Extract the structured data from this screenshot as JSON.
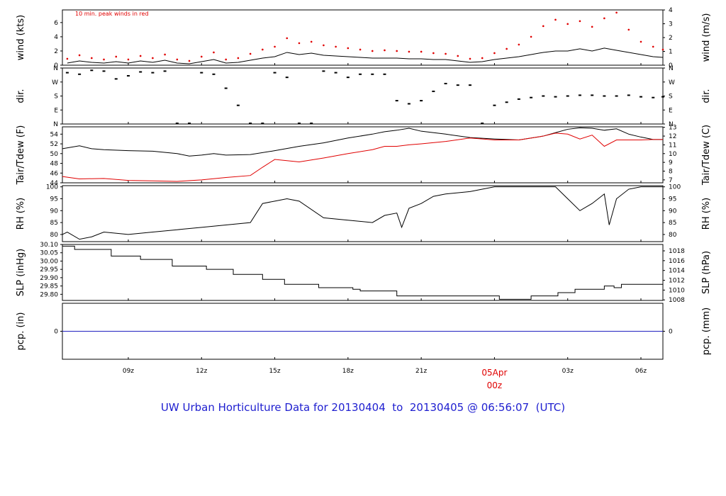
{
  "title": "UW Urban Horticulture Data for 20130404  to  20130405 @ 06:56:07  (UTC)",
  "colors": {
    "primary": "#000000",
    "peak": "#e00000",
    "dewpoint": "#e00000",
    "precip": "#2020c0",
    "title": "#2020d0",
    "day_label": "#e00000"
  },
  "time_axis": {
    "range_hours": [
      6.3,
      30.9
    ],
    "ticks": [
      {
        "h": 9,
        "label": "09z"
      },
      {
        "h": 12,
        "label": "12z"
      },
      {
        "h": 15,
        "label": "15z"
      },
      {
        "h": 18,
        "label": "18z"
      },
      {
        "h": 21,
        "label": "21z"
      },
      {
        "h": 27,
        "label": "03z"
      },
      {
        "h": 30,
        "label": "06z"
      }
    ],
    "day_marker": {
      "h": 24,
      "line1": "05Apr",
      "line2": "00z"
    }
  },
  "chart_data": [
    {
      "id": "wind",
      "type": "line",
      "ylabel_left": "wind (kts)",
      "ylabel_right": "wind (m/s)",
      "annotation": "10 min. peak winds in red",
      "ylim": [
        0,
        7.78
      ],
      "left_ticks": [
        "0",
        "2",
        "4",
        "6"
      ],
      "left_tick_values": [
        0,
        2,
        4,
        6
      ],
      "right_ticks": [
        "0",
        "1",
        "2",
        "3",
        "4"
      ],
      "right_tick_values_ms": [
        0,
        1,
        2,
        3,
        4
      ],
      "series": [
        {
          "name": "wind speed",
          "x": [
            6.5,
            7,
            7.5,
            8,
            8.5,
            9,
            9.5,
            10,
            10.5,
            11,
            11.5,
            12,
            12.5,
            13,
            13.5,
            14,
            14.5,
            15,
            15.5,
            16,
            16.5,
            17,
            17.5,
            18,
            18.5,
            19,
            19.5,
            20,
            20.5,
            21,
            21.5,
            22,
            22.5,
            23,
            23.5,
            24,
            24.5,
            25,
            25.5,
            26,
            26.5,
            27,
            27.5,
            28,
            28.5,
            29,
            29.5,
            30,
            30.5,
            30.9
          ],
          "y": [
            0.3,
            0.6,
            0.4,
            0.3,
            0.5,
            0.3,
            0.6,
            0.4,
            0.7,
            0.3,
            0.2,
            0.5,
            0.8,
            0.3,
            0.4,
            0.7,
            1.0,
            1.2,
            1.8,
            1.5,
            1.7,
            1.4,
            1.3,
            1.2,
            1.1,
            1.0,
            1.0,
            1.0,
            0.9,
            0.9,
            0.8,
            0.8,
            0.6,
            0.4,
            0.5,
            0.8,
            1.0,
            1.2,
            1.5,
            1.8,
            2.0,
            2.0,
            2.3,
            2.0,
            2.4,
            2.1,
            1.8,
            1.5,
            1.2,
            1.1
          ]
        },
        {
          "name": "10 min. peak",
          "x": [
            6.5,
            7,
            7.5,
            8,
            8.5,
            9,
            9.5,
            10,
            10.5,
            11,
            11.5,
            12,
            12.5,
            13,
            13.5,
            14,
            14.5,
            15,
            15.5,
            16,
            16.5,
            17,
            17.5,
            18,
            18.5,
            19,
            19.5,
            20,
            20.5,
            21,
            21.5,
            22,
            22.5,
            23,
            23.5,
            24,
            24.5,
            25,
            25.5,
            26,
            26.5,
            27,
            27.5,
            28,
            28.5,
            29,
            29.5,
            30,
            30.5,
            30.9
          ],
          "y": [
            0.9,
            1.4,
            1.0,
            0.8,
            1.2,
            0.8,
            1.3,
            1.0,
            1.5,
            0.8,
            0.6,
            1.2,
            1.8,
            0.8,
            1.0,
            1.6,
            2.2,
            2.6,
            3.8,
            3.1,
            3.3,
            2.8,
            2.6,
            2.4,
            2.2,
            2.0,
            2.1,
            2.0,
            1.9,
            1.9,
            1.7,
            1.6,
            1.3,
            0.9,
            1.0,
            1.7,
            2.3,
            2.9,
            4.0,
            5.5,
            6.4,
            5.8,
            6.2,
            5.4,
            6.6,
            7.4,
            5.0,
            3.3,
            2.6,
            2.2
          ]
        }
      ]
    },
    {
      "id": "dir",
      "type": "scatter",
      "ylabel_left": "dir.",
      "ylabel_right": "dir.",
      "ylim": [
        0,
        360
      ],
      "left_ticks": [
        "N",
        "W",
        "S",
        "E",
        "N"
      ],
      "tick_values_deg": [
        360,
        270,
        180,
        90,
        0
      ],
      "right_ticks": [
        "N",
        "W",
        "S",
        "E",
        "N"
      ],
      "series": [
        {
          "name": "wind direction",
          "x": [
            6.5,
            7,
            7.5,
            8,
            8.5,
            9,
            9.5,
            10,
            10.5,
            11,
            11.5,
            12,
            12.5,
            13,
            13.5,
            14,
            14.5,
            15,
            15.5,
            16,
            16.5,
            17,
            17.5,
            18,
            18.5,
            19,
            19.5,
            20,
            20.5,
            21,
            21.5,
            22,
            22.5,
            23,
            23.5,
            24,
            24.5,
            25,
            25.5,
            26,
            26.5,
            27,
            27.5,
            28,
            28.5,
            29,
            29.5,
            30,
            30.5,
            30.9
          ],
          "y": [
            330,
            320,
            345,
            340,
            290,
            310,
            335,
            330,
            340,
            0,
            0,
            330,
            320,
            230,
            120,
            0,
            0,
            330,
            300,
            0,
            0,
            340,
            330,
            300,
            320,
            320,
            320,
            150,
            130,
            150,
            210,
            260,
            250,
            250,
            0,
            120,
            140,
            160,
            170,
            180,
            175,
            180,
            185,
            185,
            180,
            180,
            185,
            175,
            170,
            175
          ]
        }
      ]
    },
    {
      "id": "temp",
      "type": "line",
      "ylabel_left": "Tair/Tdew (F)",
      "ylabel_right": "Tair/Tdew (C)",
      "ylim": [
        44,
        55.5
      ],
      "left_ticks": [
        "44",
        "46",
        "48",
        "50",
        "52",
        "54"
      ],
      "left_tick_values": [
        44,
        46,
        48,
        50,
        52,
        54
      ],
      "right_ticks": [
        "7",
        "8",
        "9",
        "10",
        "11",
        "12",
        "13"
      ],
      "right_tick_values_c": [
        7,
        8,
        9,
        10,
        11,
        12,
        13
      ],
      "series": [
        {
          "name": "Tair",
          "x": [
            6.3,
            7,
            7.5,
            8,
            9,
            10,
            11,
            11.5,
            12,
            12.5,
            13,
            14,
            15,
            16,
            17,
            18,
            19,
            19.5,
            20,
            20.5,
            21,
            22,
            23,
            24,
            25,
            26,
            26.5,
            27,
            27.5,
            28,
            28.5,
            29,
            29.5,
            30,
            30.5,
            30.9
          ],
          "y": [
            51.0,
            51.6,
            51.0,
            50.8,
            50.6,
            50.5,
            50.0,
            49.5,
            49.7,
            50.0,
            49.7,
            49.8,
            50.6,
            51.5,
            52.2,
            53.2,
            54.0,
            54.5,
            54.8,
            55.2,
            54.6,
            54.0,
            53.3,
            53.0,
            52.8,
            53.6,
            54.3,
            55.0,
            55.3,
            55.2,
            54.8,
            55.1,
            54.0,
            53.4,
            52.9,
            52.9
          ]
        },
        {
          "name": "Tdew",
          "x": [
            6.3,
            7,
            8,
            9,
            10,
            11,
            12,
            13,
            14,
            14.5,
            15,
            16,
            17,
            18,
            19,
            19.5,
            20,
            20.5,
            21,
            22,
            23,
            24,
            25,
            26,
            26.5,
            27,
            27.5,
            28,
            28.5,
            29,
            29.5,
            30,
            30.5,
            30.9
          ],
          "y": [
            45.3,
            44.8,
            44.9,
            44.5,
            44.4,
            44.3,
            44.6,
            45.1,
            45.5,
            47.2,
            48.8,
            48.3,
            49.1,
            50.0,
            50.8,
            51.5,
            51.5,
            51.8,
            52.0,
            52.5,
            53.2,
            52.8,
            52.8,
            53.6,
            54.2,
            54.0,
            53.0,
            53.8,
            51.5,
            52.8,
            52.8,
            52.8,
            52.9,
            52.9
          ]
        }
      ]
    },
    {
      "id": "rh",
      "type": "line",
      "ylabel_left": "RH (%)",
      "ylabel_right": "RH (%)",
      "ylim": [
        77,
        100.5
      ],
      "left_ticks": [
        "80",
        "85",
        "90",
        "95",
        "100"
      ],
      "left_tick_values": [
        80,
        85,
        90,
        95,
        100
      ],
      "right_ticks": [
        "80",
        "85",
        "90",
        "95",
        "100"
      ],
      "series": [
        {
          "name": "RH",
          "x": [
            6.3,
            6.5,
            7,
            7.5,
            8,
            9,
            10,
            11,
            12,
            13,
            14,
            14.5,
            15,
            15.5,
            16,
            17,
            18,
            19,
            19.5,
            20,
            20.2,
            20.5,
            21,
            21.5,
            22,
            23,
            23.5,
            24,
            25,
            26,
            26.5,
            27,
            27.5,
            28,
            28.5,
            28.7,
            29,
            29.5,
            30,
            30.5,
            30.9
          ],
          "y": [
            80,
            81,
            78,
            79,
            81,
            80,
            81,
            82,
            83,
            84,
            85,
            93,
            94,
            95,
            94,
            87,
            86,
            85,
            88,
            89,
            83,
            91,
            93,
            96,
            97,
            98,
            99,
            100,
            100,
            100,
            100,
            95,
            90,
            93,
            97,
            84,
            95,
            99,
            100,
            100,
            100
          ]
        }
      ]
    },
    {
      "id": "slp",
      "type": "line",
      "shape": "step",
      "ylabel_left": "SLP (inHg)",
      "ylabel_right": "SLP (hPa)",
      "ylim": [
        29.763,
        30.1
      ],
      "left_ticks": [
        "30.10",
        "30.05",
        "30.00",
        "29.95",
        "29.90",
        "29.85",
        "29.80"
      ],
      "left_tick_values": [
        30.1,
        30.05,
        30.0,
        29.95,
        29.9,
        29.85,
        29.8
      ],
      "right_ticks": [
        "1018",
        "1016",
        "1014",
        "1012",
        "1010",
        "1008"
      ],
      "right_tick_values_hpa": [
        1018,
        1016,
        1014,
        1012,
        1010,
        1008
      ],
      "series": [
        {
          "name": "SLP",
          "x": [
            6.3,
            6.8,
            8.3,
            9.5,
            10.8,
            12.2,
            13.3,
            14.5,
            15.4,
            16.8,
            18.2,
            18.5,
            20.0,
            21.5,
            23.0,
            24.2,
            25.5,
            26.6,
            27.3,
            28.5,
            28.9,
            29.2,
            30.9
          ],
          "y": [
            30.09,
            30.07,
            30.03,
            30.01,
            29.97,
            29.95,
            29.92,
            29.89,
            29.86,
            29.84,
            29.83,
            29.82,
            29.79,
            29.79,
            29.79,
            29.77,
            29.79,
            29.81,
            29.83,
            29.85,
            29.84,
            29.86,
            29.86
          ]
        }
      ]
    },
    {
      "id": "pcp",
      "type": "line",
      "ylabel_left": "pcp. (in)",
      "ylabel_right": "pcp. (mm)",
      "ylim": [
        -1,
        1
      ],
      "left_ticks": [
        "0"
      ],
      "left_tick_values": [
        0
      ],
      "right_ticks": [
        "0"
      ],
      "series": [
        {
          "name": "precip",
          "x": [
            6.3,
            30.9
          ],
          "y": [
            0,
            0
          ]
        }
      ]
    }
  ]
}
